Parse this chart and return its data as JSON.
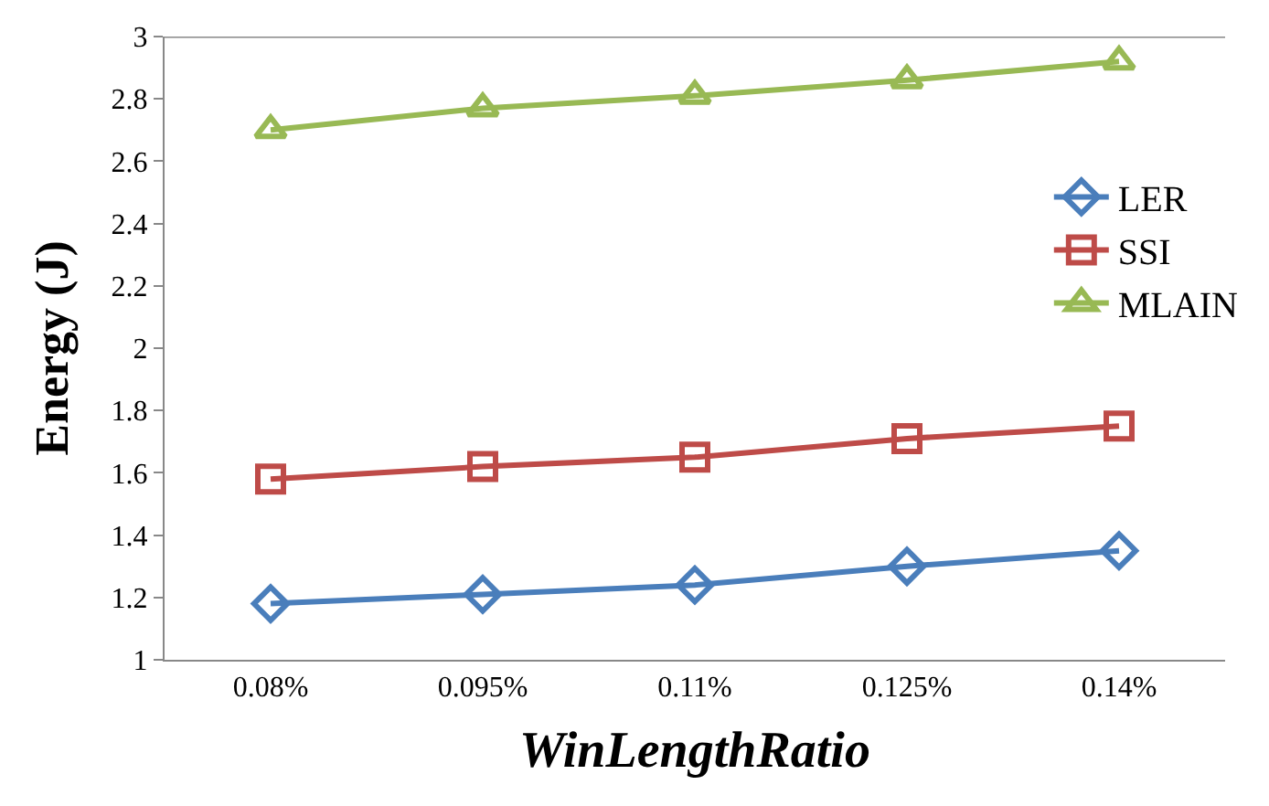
{
  "chart_data": {
    "type": "line",
    "xlabel": "WinLengthRatio",
    "ylabel": "Energy (J)",
    "categories": [
      "0.08%",
      "0.095%",
      "0.11%",
      "0.125%",
      "0.14%"
    ],
    "series": [
      {
        "name": "LER",
        "color": "#4a7ebb",
        "marker": "diamond",
        "values": [
          1.18,
          1.21,
          1.24,
          1.3,
          1.35
        ]
      },
      {
        "name": "SSI",
        "color": "#be4b48",
        "marker": "square",
        "values": [
          1.58,
          1.62,
          1.65,
          1.71,
          1.75
        ]
      },
      {
        "name": "MLAIN",
        "color": "#98b954",
        "marker": "triangle",
        "values": [
          2.7,
          2.77,
          2.81,
          2.86,
          2.92
        ]
      }
    ],
    "ylim": [
      1,
      3
    ],
    "yticks": [
      1,
      1.2,
      1.4,
      1.6,
      1.8,
      2,
      2.2,
      2.4,
      2.6,
      2.8,
      3
    ],
    "grid": false,
    "legend": "right"
  }
}
